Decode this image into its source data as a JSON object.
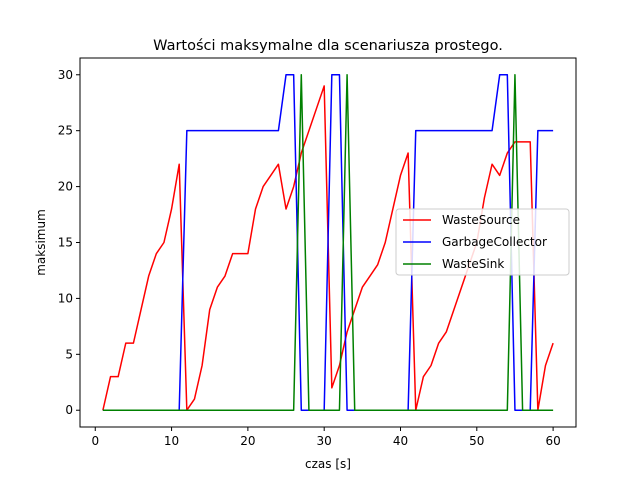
{
  "chart_data": {
    "type": "line",
    "title": "Wartości maksymalne dla scenariusza prostego.",
    "xlabel": "czas [s]",
    "ylabel": "maksimum",
    "xlim": [
      -2,
      63
    ],
    "ylim": [
      -1.5,
      31.5
    ],
    "xticks": [
      0,
      10,
      20,
      30,
      40,
      50,
      60
    ],
    "yticks": [
      0,
      5,
      10,
      15,
      20,
      25,
      30
    ],
    "grid": false,
    "legend_position": "center-right",
    "x": [
      1,
      2,
      3,
      4,
      5,
      6,
      7,
      8,
      9,
      10,
      11,
      12,
      13,
      14,
      15,
      16,
      17,
      18,
      19,
      20,
      21,
      22,
      23,
      24,
      25,
      26,
      27,
      28,
      29,
      30,
      31,
      32,
      33,
      34,
      35,
      36,
      37,
      38,
      39,
      40,
      41,
      42,
      43,
      44,
      45,
      46,
      47,
      48,
      49,
      50,
      51,
      52,
      53,
      54,
      55,
      56,
      57,
      58,
      59,
      60
    ],
    "series": [
      {
        "name": "WasteSource",
        "color": "#ff0000",
        "values": [
          0,
          3,
          3,
          6,
          6,
          9,
          12,
          14,
          15,
          18,
          22,
          0,
          1,
          4,
          9,
          11,
          12,
          14,
          14,
          14,
          18,
          20,
          21,
          22,
          18,
          20,
          23,
          25,
          27,
          29,
          2,
          4,
          7,
          9,
          11,
          12,
          13,
          15,
          18,
          21,
          23,
          0,
          3,
          4,
          6,
          7,
          9,
          11,
          13,
          15,
          19,
          22,
          21,
          23,
          24,
          24,
          24,
          0,
          4,
          6
        ]
      },
      {
        "name": "GarbageCollector",
        "color": "#0000ff",
        "values": [
          0,
          0,
          0,
          0,
          0,
          0,
          0,
          0,
          0,
          0,
          0,
          25,
          25,
          25,
          25,
          25,
          25,
          25,
          25,
          25,
          25,
          25,
          25,
          25,
          30,
          30,
          0,
          0,
          0,
          0,
          30,
          30,
          0,
          0,
          0,
          0,
          0,
          0,
          0,
          0,
          0,
          25,
          25,
          25,
          25,
          25,
          25,
          25,
          25,
          25,
          25,
          25,
          30,
          30,
          0,
          0,
          0,
          25,
          25,
          25
        ]
      },
      {
        "name": "WasteSink",
        "color": "#008000",
        "values": [
          0,
          0,
          0,
          0,
          0,
          0,
          0,
          0,
          0,
          0,
          0,
          0,
          0,
          0,
          0,
          0,
          0,
          0,
          0,
          0,
          0,
          0,
          0,
          0,
          0,
          0,
          30,
          0,
          0,
          0,
          0,
          0,
          30,
          0,
          0,
          0,
          0,
          0,
          0,
          0,
          0,
          0,
          0,
          0,
          0,
          0,
          0,
          0,
          0,
          0,
          0,
          0,
          0,
          0,
          30,
          0,
          0,
          0,
          0,
          0
        ]
      }
    ]
  }
}
